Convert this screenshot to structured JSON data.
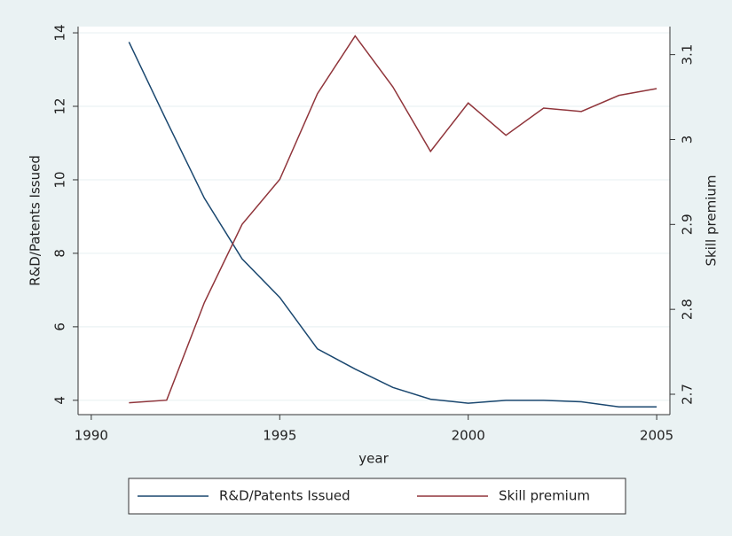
{
  "chart_data": {
    "type": "line",
    "x_label": "year",
    "y_label": "R&D/Patents Issued",
    "y2_label": "Skill premium",
    "x": [
      1991,
      1992,
      1993,
      1994,
      1995,
      1996,
      1997,
      1998,
      1999,
      2000,
      2001,
      2002,
      2003,
      2004,
      2005
    ],
    "series": [
      {
        "name": "R&D/Patents Issued",
        "color": "#1a476f",
        "axis": "y",
        "values": [
          13.75,
          11.6,
          9.5,
          7.85,
          6.8,
          5.4,
          4.85,
          4.35,
          4.03,
          3.92,
          4.0,
          4.0,
          3.96,
          3.82,
          3.82
        ]
      },
      {
        "name": "Skill premium",
        "color": "#90353b",
        "axis": "y2",
        "values": [
          2.69,
          2.693,
          2.808,
          2.9,
          2.953,
          3.054,
          3.122,
          3.062,
          2.986,
          3.043,
          3.005,
          3.037,
          3.033,
          3.052,
          3.06
        ]
      }
    ],
    "xlim": [
      1989.65,
      2005.35
    ],
    "xticks": [
      1990,
      1995,
      2000,
      2005
    ],
    "ylim": [
      3.61,
      14.17
    ],
    "yticks": [
      4,
      6,
      8,
      10,
      12,
      14
    ],
    "y2lim": [
      2.676,
      3.133
    ],
    "y2ticks": [
      2.7,
      2.8,
      2.9,
      3,
      3.1
    ],
    "grid": true,
    "legend": "bottom"
  }
}
